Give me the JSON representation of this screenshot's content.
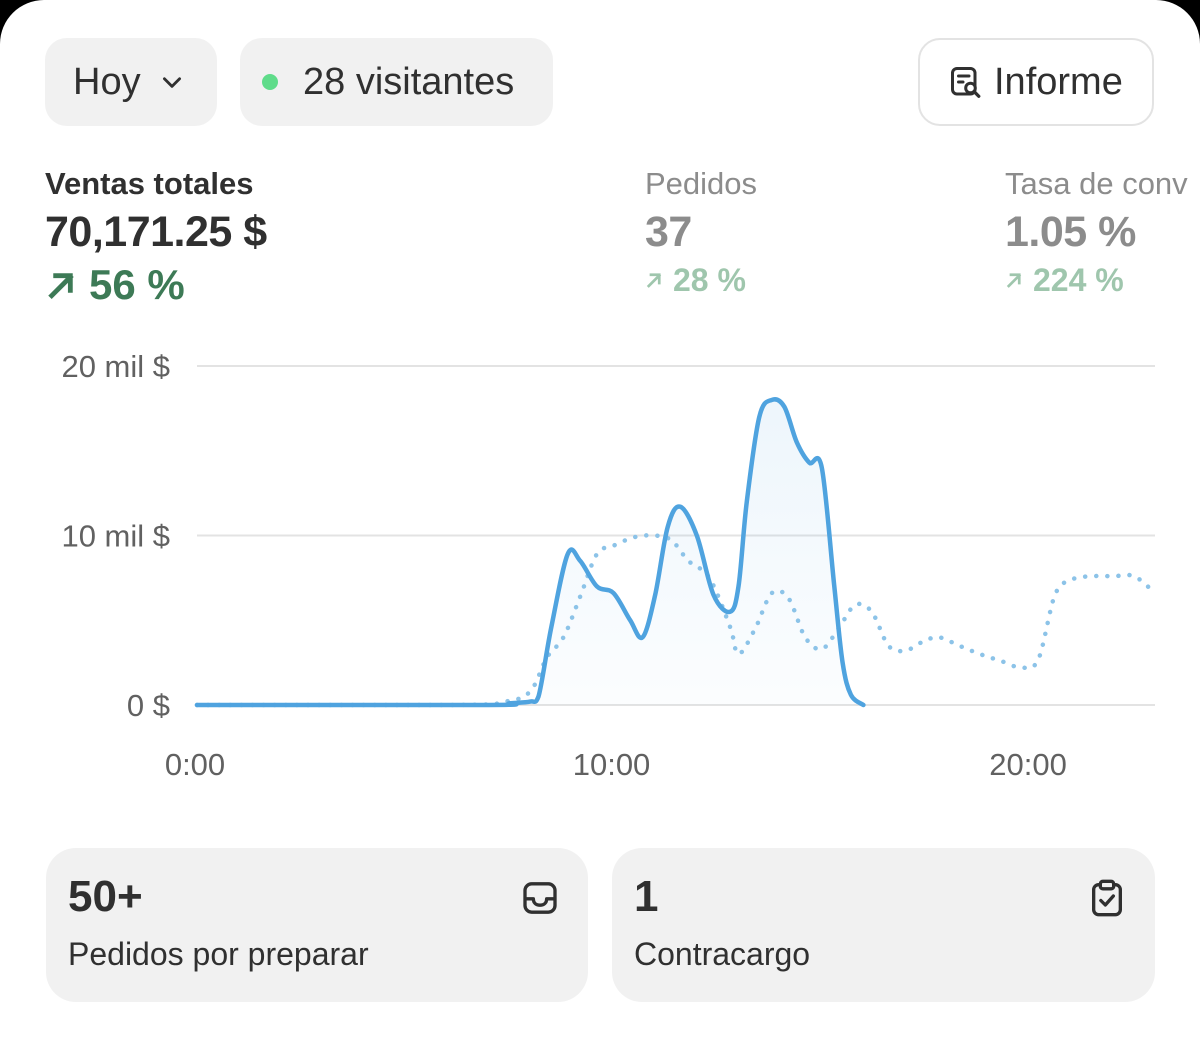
{
  "header": {
    "date_filter": "Hoy",
    "visitors": "28 visitantes",
    "report_button": "Informe"
  },
  "metrics": [
    {
      "label": "Ventas totales",
      "value": "70,171.25 $",
      "change": "56 %"
    },
    {
      "label": "Pedidos",
      "value": "37",
      "change": "28 %"
    },
    {
      "label": "Tasa de conv",
      "value": "1.05 %",
      "change": "224 %"
    }
  ],
  "chart_data": {
    "type": "line",
    "y_tick_labels": [
      "0 $",
      "10 mil $",
      "20 mil $"
    ],
    "x_tick_labels": [
      "0:00",
      "10:00",
      "20:00"
    ],
    "xlim": [
      0,
      23
    ],
    "ylim": [
      0,
      20000
    ],
    "grid": true,
    "colors": {
      "current": "#4fa3df",
      "comparison": "#8cc3e8"
    },
    "series": [
      {
        "style": "solid",
        "x": [
          0,
          7,
          7.5,
          8,
          8.2,
          8.5,
          8.9,
          9.2,
          9.6,
          10.0,
          10.4,
          10.7,
          11.0,
          11.3,
          11.6,
          12.0,
          12.4,
          12.8,
          13.0,
          13.2,
          13.5,
          13.8,
          14.1,
          14.4,
          14.7,
          15.0,
          15.3,
          15.5,
          15.7,
          16.0
        ],
        "y": [
          0,
          0,
          100,
          200,
          500,
          4500,
          8900,
          8500,
          7000,
          6600,
          5000,
          4000,
          6500,
          10500,
          11700,
          10000,
          6500,
          5500,
          7000,
          12000,
          17000,
          18000,
          17600,
          15500,
          14300,
          14000,
          7000,
          2500,
          600,
          0
        ]
      },
      {
        "style": "dotted",
        "x": [
          0,
          6.2,
          7.4,
          8.0,
          8.4,
          8.8,
          9.2,
          9.6,
          10.0,
          10.5,
          11.0,
          11.4,
          11.8,
          12.3,
          12.8,
          13.0,
          13.4,
          13.8,
          14.2,
          14.6,
          15.0,
          15.4,
          15.8,
          16.2,
          16.6,
          17.0,
          17.4,
          17.8,
          18.3,
          18.8,
          19.3,
          19.8,
          20.2,
          20.6,
          21.0,
          21.5,
          22.0,
          22.5,
          23.0
        ],
        "y": [
          0,
          0,
          200,
          800,
          2800,
          4000,
          6400,
          8900,
          9400,
          9900,
          10000,
          9700,
          8500,
          7500,
          4600,
          3000,
          4500,
          6600,
          6300,
          4000,
          3300,
          4500,
          5900,
          5500,
          3500,
          3200,
          3700,
          4000,
          3500,
          3000,
          2600,
          2200,
          2700,
          6500,
          7400,
          7600,
          7600,
          7600,
          6600
        ]
      }
    ]
  },
  "tiles": [
    {
      "number": "50+",
      "label": "Pedidos por preparar",
      "icon": "inbox-icon"
    },
    {
      "number": "1",
      "label": "Contracargo",
      "icon": "clipboard-check-icon"
    }
  ]
}
